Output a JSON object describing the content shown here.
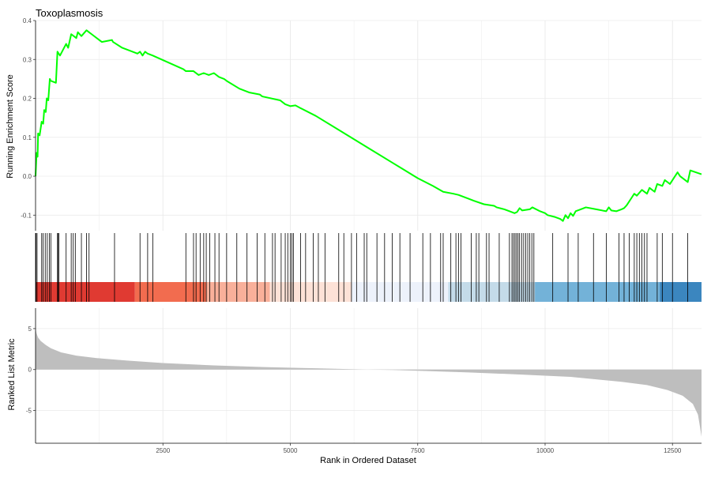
{
  "chart_data": {
    "type": "line",
    "title": "Toxoplasmosis",
    "xlabel": "Rank in Ordered Dataset",
    "xlim": [
      0,
      13070
    ],
    "x_ticks": [
      2500,
      5000,
      7500,
      10000,
      12500
    ],
    "x_tick_labels": [
      "2500",
      "5000",
      "7500",
      "10000",
      "12500"
    ],
    "grid": true,
    "colors": {
      "es_line": "#00ff00",
      "hit": "#000000",
      "metric_fill": "#bebebe",
      "grid": "#ebebeb"
    },
    "running_enrichment": {
      "ylabel": "Running Enrichment Score",
      "ylim": [
        -0.14,
        0.4
      ],
      "y_ticks": [
        -0.1,
        0.0,
        0.1,
        0.2,
        0.3,
        0.4
      ],
      "y_tick_labels": [
        "-0.1",
        "0.0",
        "0.1",
        "0.2",
        "0.3",
        "0.4"
      ],
      "x": [
        0,
        20,
        40,
        50,
        80,
        120,
        150,
        170,
        200,
        220,
        250,
        280,
        300,
        400,
        430,
        480,
        600,
        640,
        700,
        800,
        830,
        900,
        1000,
        1050,
        1100,
        1300,
        1500,
        1520,
        1700,
        2000,
        2050,
        2100,
        2150,
        2200,
        2300,
        2900,
        2950,
        3100,
        3200,
        3300,
        3400,
        3500,
        3600,
        3700,
        3750,
        4000,
        4200,
        4400,
        4450,
        4800,
        4900,
        5000,
        5100,
        5200,
        5500,
        6000,
        6500,
        7000,
        7500,
        7800,
        8000,
        8200,
        8300,
        8500,
        8600,
        8800,
        8900,
        9000,
        9050,
        9200,
        9300,
        9400,
        9450,
        9500,
        9550,
        9700,
        9750,
        9900,
        10000,
        10050,
        10200,
        10300,
        10350,
        10400,
        10450,
        10500,
        10550,
        10600,
        10700,
        10800,
        11000,
        11200,
        11250,
        11300,
        11400,
        11500,
        11550,
        11600,
        11650,
        11700,
        11750,
        11800,
        11900,
        12000,
        12050,
        12150,
        12200,
        12300,
        12350,
        12450,
        12600,
        12650,
        12800,
        12850,
        13070
      ],
      "y": [
        0.0,
        0.06,
        0.05,
        0.11,
        0.105,
        0.14,
        0.135,
        0.17,
        0.165,
        0.2,
        0.195,
        0.25,
        0.245,
        0.24,
        0.32,
        0.31,
        0.34,
        0.33,
        0.365,
        0.355,
        0.37,
        0.36,
        0.375,
        0.37,
        0.365,
        0.345,
        0.35,
        0.345,
        0.33,
        0.315,
        0.32,
        0.31,
        0.32,
        0.315,
        0.31,
        0.275,
        0.27,
        0.27,
        0.26,
        0.265,
        0.26,
        0.265,
        0.255,
        0.25,
        0.245,
        0.225,
        0.215,
        0.21,
        0.205,
        0.195,
        0.185,
        0.18,
        0.182,
        0.175,
        0.155,
        0.115,
        0.075,
        0.035,
        -0.005,
        -0.025,
        -0.04,
        -0.045,
        -0.048,
        -0.058,
        -0.063,
        -0.072,
        -0.074,
        -0.076,
        -0.08,
        -0.085,
        -0.09,
        -0.095,
        -0.092,
        -0.082,
        -0.088,
        -0.085,
        -0.08,
        -0.09,
        -0.095,
        -0.1,
        -0.105,
        -0.11,
        -0.115,
        -0.1,
        -0.108,
        -0.095,
        -0.102,
        -0.09,
        -0.085,
        -0.08,
        -0.085,
        -0.09,
        -0.08,
        -0.088,
        -0.09,
        -0.085,
        -0.082,
        -0.075,
        -0.065,
        -0.055,
        -0.045,
        -0.05,
        -0.035,
        -0.045,
        -0.03,
        -0.04,
        -0.02,
        -0.025,
        -0.01,
        -0.02,
        0.01,
        0.0,
        -0.015,
        0.015,
        0.005
      ],
      "hits": [
        10,
        30,
        120,
        150,
        190,
        230,
        270,
        300,
        430,
        440,
        460,
        600,
        700,
        740,
        780,
        900,
        1000,
        1050,
        1550,
        2050,
        2200,
        2300,
        2950,
        3100,
        3150,
        3230,
        3300,
        3350,
        3420,
        3520,
        3600,
        3750,
        3950,
        4150,
        4350,
        4500,
        4650,
        4700,
        4820,
        4900,
        4950,
        5000,
        5030,
        5060,
        5200,
        5300,
        5450,
        5550,
        5680,
        5950,
        6050,
        6200,
        6300,
        6450,
        6500,
        6700,
        6850,
        7000,
        7150,
        7350,
        7600,
        7750,
        7950,
        8000,
        8150,
        8250,
        8300,
        8350,
        8550,
        8650,
        8700,
        8850,
        8900,
        9100,
        9300,
        9350,
        9380,
        9410,
        9440,
        9470,
        9500,
        9540,
        9580,
        9620,
        9660,
        9700,
        9740,
        9780,
        10150,
        10450,
        10650,
        10950,
        11200,
        11450,
        11550,
        11650,
        11750,
        11800,
        11850,
        11900,
        11950,
        12000,
        12200,
        12300,
        12500,
        12800
      ]
    },
    "ranked_list_metric": {
      "ylabel": "Ranked List Metric",
      "ylim": [
        -9,
        7.5
      ],
      "y_ticks": [
        -5,
        0,
        5
      ],
      "y_tick_labels": [
        "-5",
        "0",
        "5"
      ],
      "x": [
        0,
        20,
        50,
        100,
        200,
        300,
        500,
        800,
        1200,
        1800,
        2500,
        3500,
        4500,
        5500,
        6500,
        7000,
        7500,
        8500,
        9500,
        10500,
        11000,
        11500,
        12000,
        12400,
        12700,
        12900,
        13000,
        13040,
        13070
      ],
      "y": [
        5.0,
        4.4,
        3.9,
        3.5,
        3.0,
        2.6,
        2.1,
        1.7,
        1.4,
        1.1,
        0.8,
        0.5,
        0.3,
        0.15,
        0.0,
        -0.05,
        -0.15,
        -0.35,
        -0.6,
        -0.9,
        -1.2,
        -1.5,
        -1.9,
        -2.5,
        -3.2,
        -4.2,
        -5.5,
        -7.0,
        -8.2
      ]
    },
    "color_bar": [
      {
        "from": 0,
        "to": 1950,
        "color": "#e03a32"
      },
      {
        "from": 1950,
        "to": 3350,
        "color": "#f26c4f"
      },
      {
        "from": 3350,
        "to": 4600,
        "color": "#f9b09a"
      },
      {
        "from": 4600,
        "to": 6200,
        "color": "#fde2d7"
      },
      {
        "from": 6200,
        "to": 8100,
        "color": "#edf2fb"
      },
      {
        "from": 8100,
        "to": 9800,
        "color": "#c4dbe9"
      },
      {
        "from": 9800,
        "to": 12250,
        "color": "#73b2d8"
      },
      {
        "from": 12250,
        "to": 13070,
        "color": "#3b86bf"
      }
    ]
  }
}
